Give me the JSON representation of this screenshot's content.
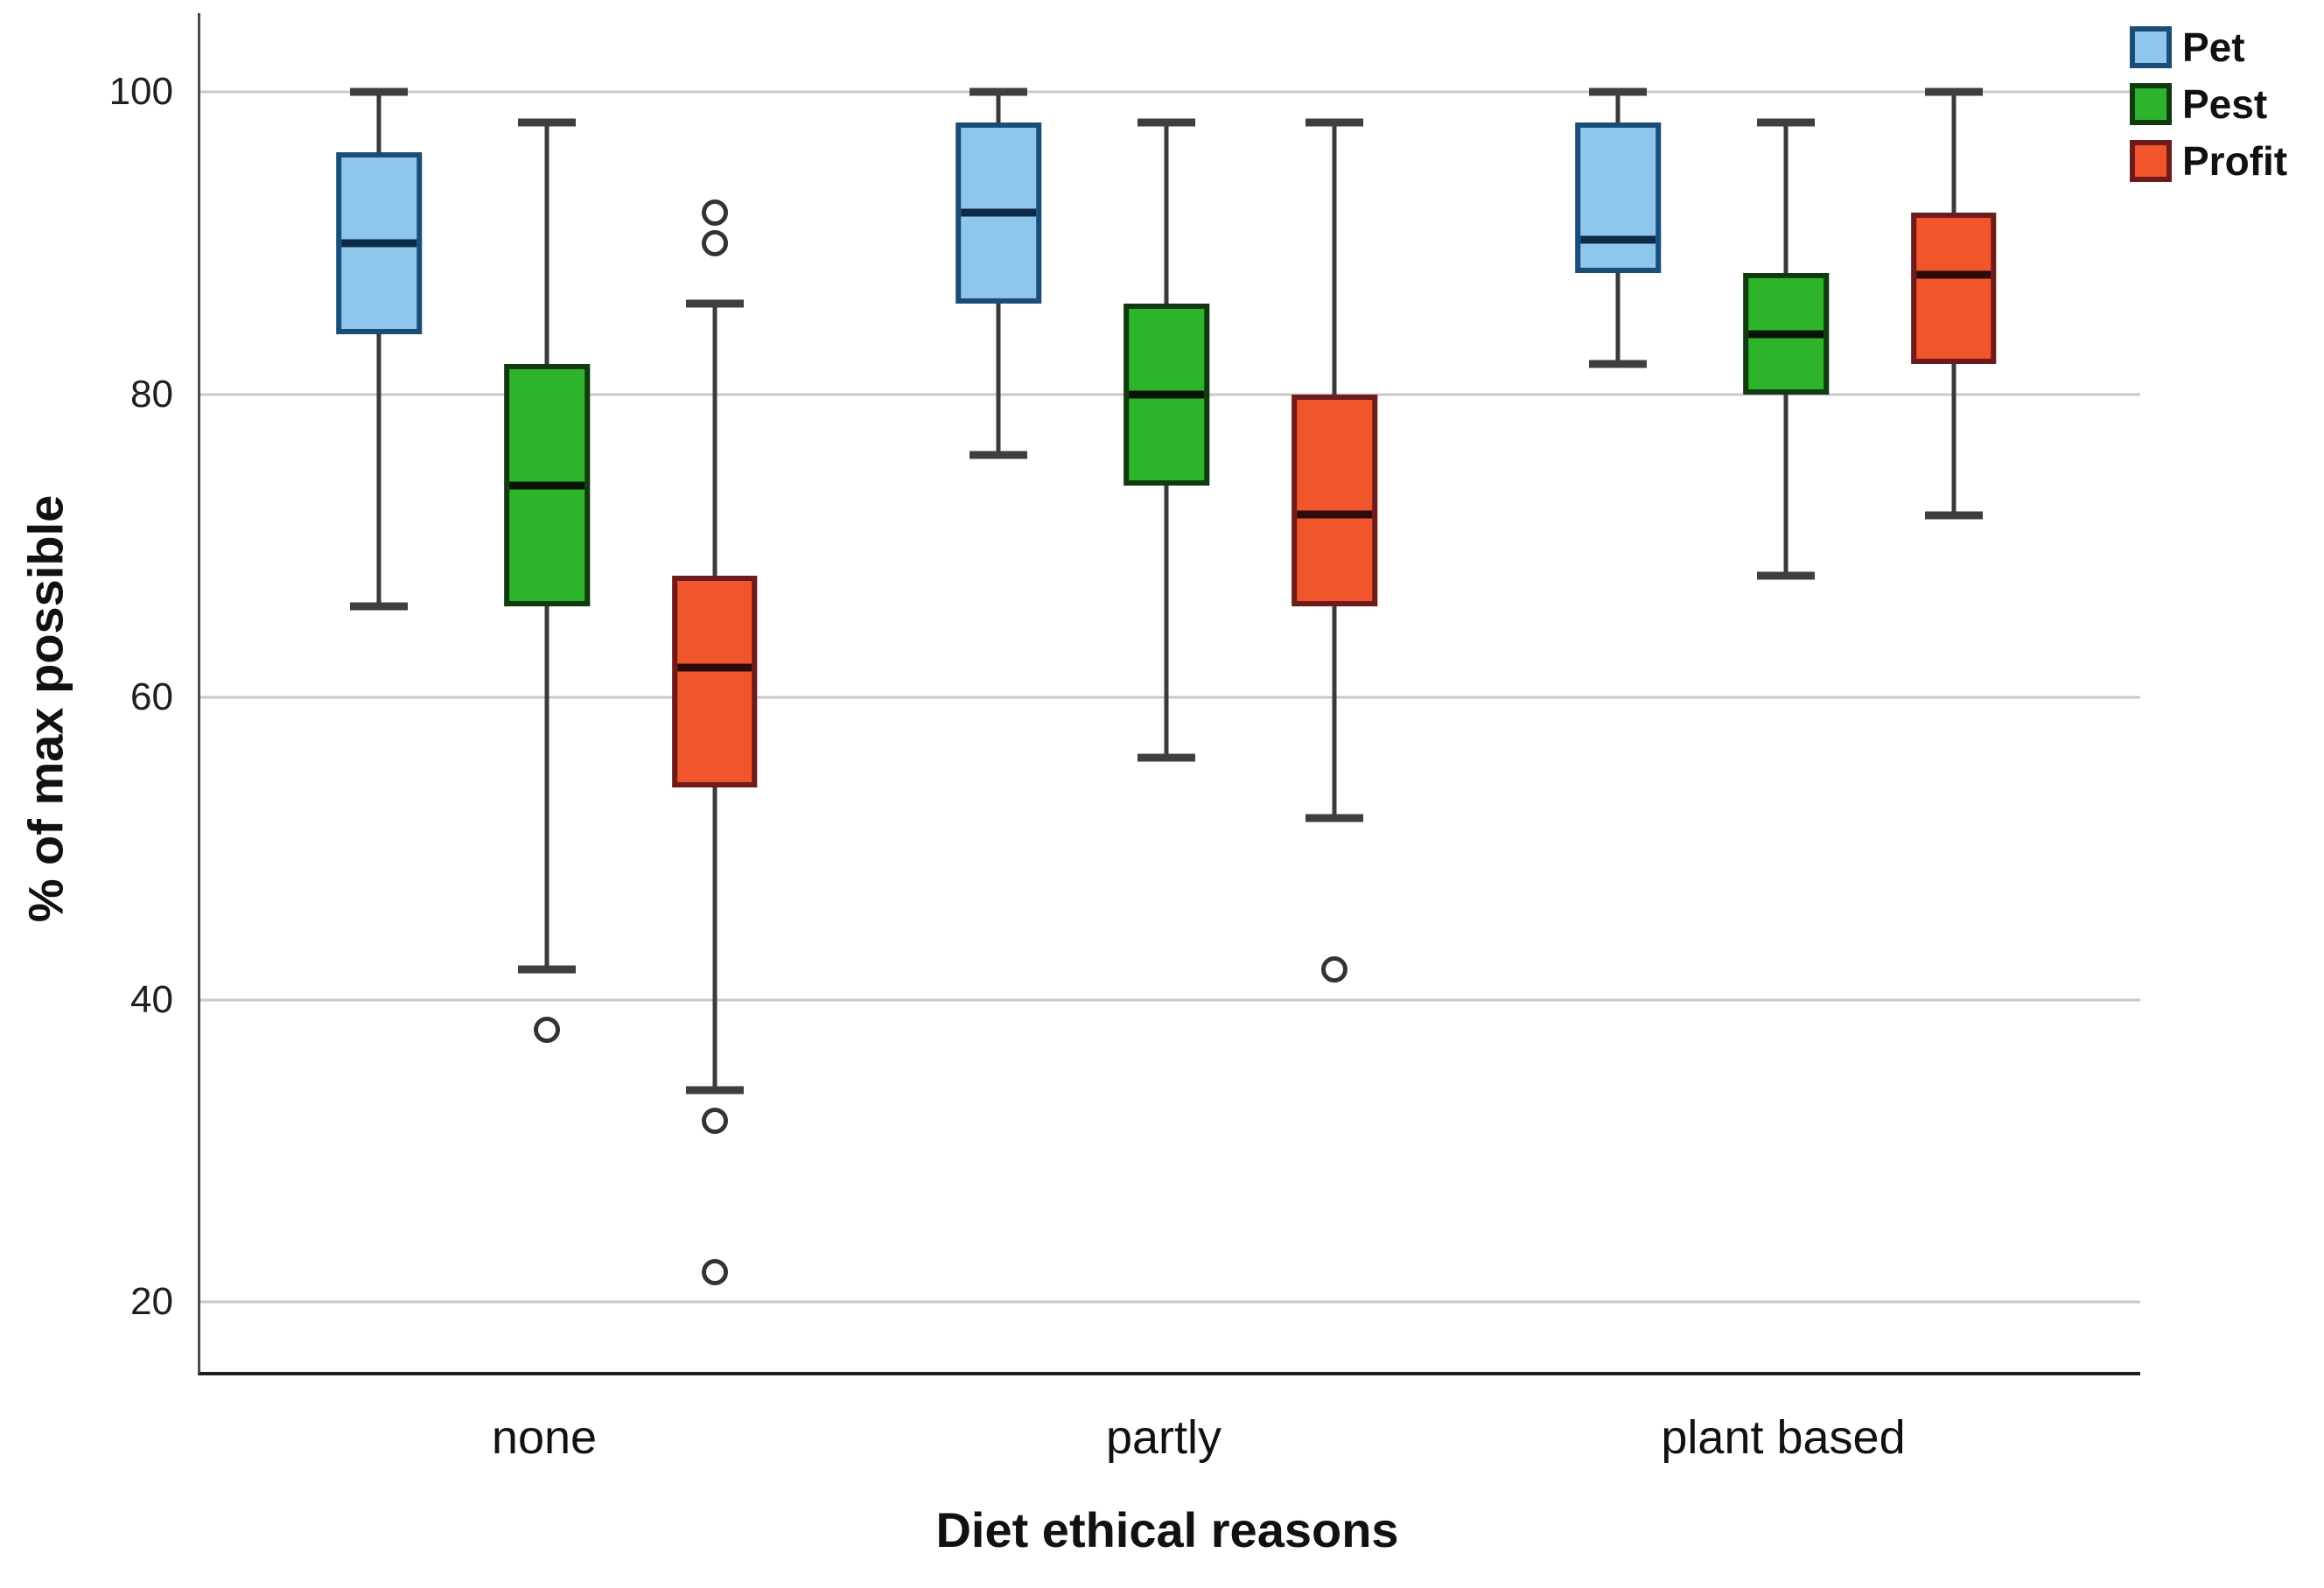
{
  "chart_data": {
    "type": "boxplot",
    "title": "",
    "xlabel": "Diet ethical reasons",
    "ylabel": "% of max possible",
    "categories": [
      "none",
      "partly",
      "plant based"
    ],
    "y_ticks": [
      20,
      40,
      60,
      80,
      100
    ],
    "y_axis_range": [
      15.4,
      105.2
    ],
    "grid": "horizontal-gridlines-at-ticks",
    "legend_position": "top-right",
    "series": [
      {
        "name": "Pet",
        "fill": "#8FC6EC",
        "border": "#1A4E79",
        "median_color": "#0B2B49",
        "boxes": [
          {
            "category": "none",
            "min": 66,
            "q1": 84,
            "median": 90,
            "q3": 96,
            "max": 100,
            "outliers": []
          },
          {
            "category": "partly",
            "min": 76,
            "q1": 86,
            "median": 92,
            "q3": 98,
            "max": 100,
            "outliers": []
          },
          {
            "category": "plant based",
            "min": 82,
            "q1": 88,
            "median": 90,
            "q3": 98,
            "max": 100,
            "outliers": []
          }
        ]
      },
      {
        "name": "Pest",
        "fill": "#2EB42A",
        "border": "#123A10",
        "median_color": "#061307",
        "boxes": [
          {
            "category": "none",
            "min": 42,
            "q1": 66,
            "median": 74,
            "q3": 82,
            "max": 98,
            "outliers": [
              38
            ]
          },
          {
            "category": "partly",
            "min": 56,
            "q1": 74,
            "median": 80,
            "q3": 86,
            "max": 98,
            "outliers": []
          },
          {
            "category": "plant based",
            "min": 68,
            "q1": 80,
            "median": 84,
            "q3": 88,
            "max": 98,
            "outliers": []
          }
        ]
      },
      {
        "name": "Profit",
        "fill": "#F1552B",
        "border": "#6E1B1B",
        "median_color": "#2E0B0B",
        "boxes": [
          {
            "category": "none",
            "min": 34,
            "q1": 54,
            "median": 62,
            "q3": 68,
            "max": 86,
            "outliers": [
              92,
              90,
              32,
              22
            ]
          },
          {
            "category": "partly",
            "min": 52,
            "q1": 66,
            "median": 72,
            "q3": 80,
            "max": 98,
            "outliers": [
              42
            ]
          },
          {
            "category": "plant based",
            "min": 72,
            "q1": 82,
            "median": 88,
            "q3": 92,
            "max": 100,
            "outliers": []
          }
        ]
      }
    ]
  },
  "legend": {
    "items": [
      {
        "label": "Pet"
      },
      {
        "label": "Pest"
      },
      {
        "label": "Profit"
      }
    ]
  },
  "colors": {
    "gridline": "#C9C9C9",
    "whisker": "#3A3A3A",
    "cap": "#3F3F3F",
    "outlier": "#333333"
  }
}
